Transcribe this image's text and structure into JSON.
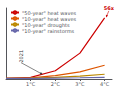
{
  "chart_data": {
    "type": "line",
    "x": [
      0.0,
      1,
      2,
      3,
      4
    ],
    "series": [
      {
        "name": "\"50-year\" heat waves",
        "color": "#cc0000",
        "values": [
          1,
          2.0,
          8.0,
          24.0,
          56.0
        ]
      },
      {
        "name": "\"10-year\" heat waves",
        "color": "#dd5500",
        "values": [
          1,
          1.6,
          3.5,
          7.0,
          13.0
        ]
      },
      {
        "name": "\"10-year\" droughts",
        "color": "#bb8800",
        "values": [
          1,
          1.25,
          2.0,
          3.2,
          4.8
        ]
      },
      {
        "name": "\"10-year\" rainstorms",
        "color": "#6666aa",
        "values": [
          1,
          1.1,
          1.35,
          1.65,
          2.0
        ]
      }
    ],
    "xlim": [
      0.0,
      4.3
    ],
    "ylim": [
      0.5,
      65
    ],
    "xticks": [
      {
        "value": 1,
        "label": "1°C"
      },
      {
        "value": 2,
        "label": "2°C"
      },
      {
        "value": 3,
        "label": "3°C"
      },
      {
        "value": 4,
        "label": "4°C"
      }
    ],
    "yticks": [],
    "tick_labels": "x",
    "grid": false,
    "legend": "upper left",
    "annotations": [
      {
        "text": "2021",
        "x": 1.5,
        "y": 4.5
      },
      {
        "text": "56x",
        "x": 4.05,
        "y": 56,
        "color": "#cc0000"
      }
    ]
  }
}
